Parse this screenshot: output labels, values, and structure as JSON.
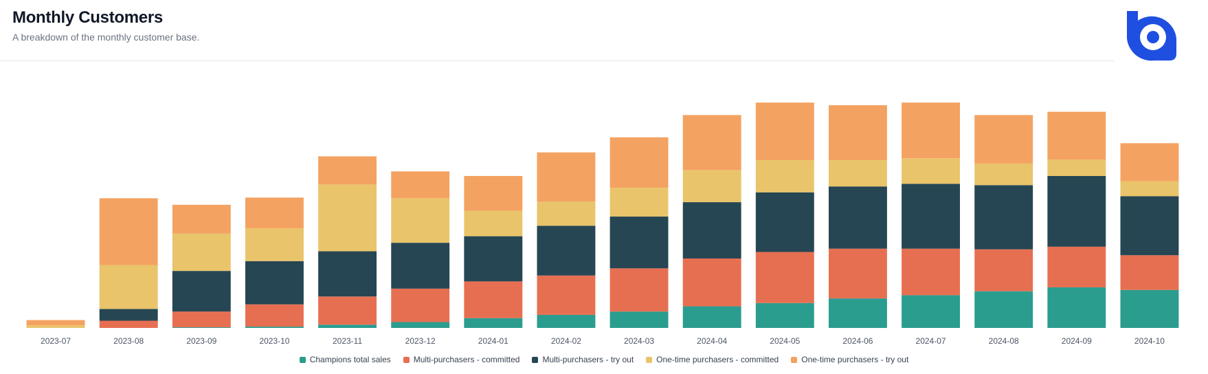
{
  "header": {
    "title": "Monthly Customers",
    "subtitle": "A breakdown of the monthly customer base."
  },
  "logo": {
    "icon": "brand-logo-icon",
    "color": "#1f4fe0"
  },
  "chart_data": {
    "type": "bar",
    "stacked": true,
    "categories": [
      "2023-07",
      "2023-08",
      "2023-09",
      "2023-10",
      "2023-11",
      "2023-12",
      "2024-01",
      "2024-02",
      "2024-03",
      "2024-04",
      "2024-05",
      "2024-06",
      "2024-07",
      "2024-08",
      "2024-09",
      "2024-10"
    ],
    "series": [
      {
        "name": "Champions total sales",
        "color": "#2a9d8f",
        "values": [
          0,
          0,
          1,
          2,
          5,
          9,
          15,
          20,
          25,
          33,
          38,
          45,
          50,
          56,
          62,
          58
        ]
      },
      {
        "name": "Multi-purchasers - committed",
        "color": "#e76f51",
        "values": [
          0,
          11,
          24,
          34,
          43,
          51,
          56,
          60,
          66,
          73,
          78,
          76,
          71,
          64,
          62,
          53
        ]
      },
      {
        "name": "Multi-purchasers - try out",
        "color": "#264653",
        "values": [
          0,
          18,
          62,
          66,
          69,
          70,
          69,
          76,
          79,
          86,
          91,
          95,
          99,
          98,
          108,
          90
        ]
      },
      {
        "name": "One-time purchasers - committed",
        "color": "#e9c46a",
        "values": [
          4,
          67,
          57,
          50,
          102,
          68,
          39,
          37,
          44,
          49,
          49,
          40,
          39,
          33,
          25,
          23
        ]
      },
      {
        "name": "One-time purchasers - try out",
        "color": "#f4a261",
        "values": [
          8,
          102,
          44,
          47,
          43,
          41,
          53,
          75,
          77,
          84,
          88,
          84,
          85,
          74,
          73,
          58
        ]
      }
    ],
    "ylim": [
      0,
      360
    ],
    "grid": false,
    "legend": "bottom-center"
  }
}
